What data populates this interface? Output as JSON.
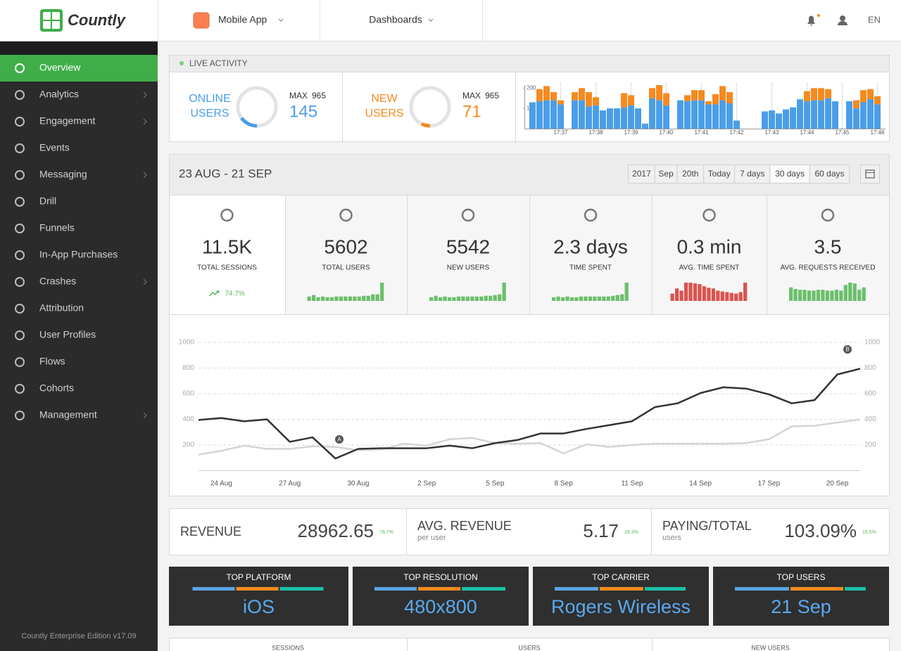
{
  "header": {
    "logo": "Countly",
    "app": "Mobile App",
    "menu": "Dashboards",
    "language": "EN"
  },
  "sidebar": {
    "items": [
      {
        "label": "Overview",
        "active": true
      },
      {
        "label": "Analytics",
        "submenu": true
      },
      {
        "label": "Engagement",
        "submenu": true
      },
      {
        "label": "Events"
      },
      {
        "label": "Messaging",
        "submenu": true
      },
      {
        "label": "Drill"
      },
      {
        "label": "Funnels"
      },
      {
        "label": "In-App Purchases"
      },
      {
        "label": "Crashes",
        "submenu": true
      },
      {
        "label": "Attribution"
      },
      {
        "label": "User Profiles"
      },
      {
        "label": "Flows"
      },
      {
        "label": "Cohorts"
      },
      {
        "label": "Management",
        "submenu": true
      }
    ],
    "footer": "Countly Enterprise Edition v17.09"
  },
  "live": {
    "title": "LIVE ACTIVITY",
    "online": {
      "label": [
        "ONLINE",
        "USERS"
      ],
      "max_label": "MAX",
      "max": 965,
      "value": 145,
      "color": "#4a9ee8"
    },
    "new": {
      "label": [
        "NEW",
        "USERS"
      ],
      "max_label": "MAX",
      "max": 965,
      "value": 71,
      "color": "#f58a1f"
    }
  },
  "chart_data": [
    {
      "type": "bar",
      "stacked": true,
      "categories": [
        null,
        null,
        null,
        null,
        "17:37",
        null,
        null,
        null,
        null,
        "17:38",
        null,
        null,
        null,
        null,
        "17:39",
        null,
        null,
        null,
        null,
        "17:40",
        null,
        null,
        null,
        null,
        "17:41",
        null,
        null,
        null,
        null,
        "17:42",
        null,
        null,
        null,
        null,
        "17:43",
        null,
        null,
        null,
        null,
        "17:44",
        null,
        null,
        null,
        null,
        "17:45",
        null,
        null,
        null,
        null,
        "17:46"
      ],
      "series": [
        {
          "color": "#4a9ee8",
          "values": [
            130,
            135,
            140,
            140,
            120,
            null,
            140,
            140,
            110,
            115,
            90,
            100,
            100,
            105,
            115,
            100,
            25,
            150,
            140,
            115,
            null,
            140,
            135,
            140,
            140,
            120,
            120,
            140,
            125,
            40,
            null,
            null,
            null,
            85,
            90,
            75,
            95,
            105,
            145,
            135,
            140,
            140,
            150,
            135,
            null,
            135,
            100,
            130,
            145,
            120
          ]
        },
        {
          "color": "#f58a1f",
          "values": [
            0,
            60,
            70,
            40,
            20,
            null,
            40,
            60,
            70,
            40,
            0,
            0,
            0,
            70,
            50,
            0,
            0,
            50,
            75,
            60,
            null,
            0,
            30,
            50,
            50,
            15,
            50,
            70,
            55,
            0,
            null,
            null,
            null,
            0,
            0,
            0,
            0,
            0,
            0,
            50,
            60,
            60,
            45,
            0,
            null,
            0,
            40,
            60,
            50,
            40
          ]
        }
      ],
      "ylim": [
        0,
        215
      ],
      "yticks": [
        100,
        200
      ]
    },
    {
      "type": "line",
      "categories": [
        null,
        "24 Aug",
        null,
        null,
        "27 Aug",
        null,
        null,
        "30 Aug",
        null,
        null,
        "2 Sep",
        null,
        null,
        "5 Sep",
        null,
        null,
        "8 Sep",
        null,
        null,
        "11 Sep",
        null,
        null,
        "14 Sep",
        null,
        null,
        "17 Sep",
        null,
        null,
        "20 Sep",
        null
      ],
      "series": [
        {
          "color": "#333333",
          "values": [
            395,
            410,
            385,
            400,
            225,
            260,
            95,
            170,
            175,
            175,
            175,
            195,
            175,
            215,
            240,
            290,
            290,
            325,
            355,
            385,
            495,
            525,
            605,
            650,
            640,
            595,
            525,
            550,
            750,
            795
          ]
        },
        {
          "color": "#d4d4d4",
          "values": [
            125,
            155,
            195,
            170,
            170,
            190,
            185,
            160,
            165,
            210,
            195,
            245,
            255,
            215,
            210,
            215,
            135,
            205,
            185,
            200,
            210,
            210,
            210,
            210,
            215,
            245,
            345,
            350,
            375,
            400
          ]
        }
      ],
      "ylim": [
        0,
        1000
      ],
      "yticks": [
        200,
        400,
        600,
        800,
        1000
      ],
      "y2lim": [
        0,
        1000
      ],
      "y2ticks": [
        200,
        400,
        600,
        800,
        1000
      ],
      "grid": true,
      "annotations": [
        "A",
        "B"
      ]
    }
  ],
  "period": {
    "range": "23 AUG - 21 SEP",
    "buttons": [
      "2017",
      "Sep",
      "20th",
      "Today",
      "7 days",
      "30 days",
      "60 days"
    ],
    "active": "30 days"
  },
  "stats": [
    {
      "value": "11.5K",
      "label": "TOTAL SESSIONS",
      "trend": "74.7%"
    },
    {
      "value": "5602",
      "label": "TOTAL USERS",
      "color": "#6cbf6c",
      "bars": [
        6,
        8,
        5,
        6,
        5,
        5,
        6,
        6,
        6,
        6,
        6,
        6,
        7,
        7,
        9,
        9,
        25
      ]
    },
    {
      "value": "5542",
      "label": "NEW USERS",
      "color": "#6cbf6c",
      "bars": [
        5,
        7,
        5,
        6,
        5,
        5,
        6,
        6,
        6,
        6,
        6,
        6,
        7,
        7,
        8,
        9,
        25
      ]
    },
    {
      "value": "2.3 days",
      "label": "TIME SPENT",
      "color": "#6cbf6c",
      "bars": [
        5,
        6,
        5,
        6,
        5,
        5,
        6,
        6,
        6,
        6,
        6,
        6,
        6,
        7,
        8,
        9,
        25
      ]
    },
    {
      "value": "0.3 min",
      "label": "AVG. TIME SPENT",
      "color": "#d9534f",
      "bars": [
        10,
        17,
        14,
        25,
        25,
        24,
        23,
        20,
        18,
        17,
        14,
        13,
        12,
        11,
        10,
        12,
        25
      ]
    },
    {
      "value": "3.5",
      "label": "AVG. REQUESTS RECEIVED",
      "color": "#6cbf6c",
      "bars": [
        17,
        15,
        14,
        14,
        13,
        13,
        14,
        14,
        13,
        13,
        14,
        13,
        20,
        23,
        22,
        14,
        17
      ]
    }
  ],
  "revenue": [
    {
      "title": "REVENUE",
      "value": "28962.65",
      "change": "76.7%"
    },
    {
      "title": "AVG. REVENUE",
      "subtitle": "per user",
      "value": "5.17",
      "change": "29.3%"
    },
    {
      "title": "PAYING/TOTAL",
      "subtitle": "users",
      "value": "103.09%",
      "change": "15.5%"
    }
  ],
  "tops": {
    "colors": [
      "#5ba4e5",
      "#f68b1f",
      "#1bbfa6"
    ],
    "items": [
      {
        "title": "TOP PLATFORM",
        "value": "iOS",
        "shares": [
          33,
          33,
          34
        ]
      },
      {
        "title": "TOP RESOLUTION",
        "value": "480x800",
        "shares": [
          33,
          33,
          34
        ]
      },
      {
        "title": "TOP CARRIER",
        "value": "Rogers Wireless",
        "shares": [
          34,
          34,
          32
        ]
      },
      {
        "title": "TOP USERS",
        "value": "21 Sep",
        "shares": [
          42,
          41,
          17
        ]
      }
    ]
  },
  "tabs": [
    "SESSIONS",
    "USERS",
    "NEW USERS"
  ]
}
